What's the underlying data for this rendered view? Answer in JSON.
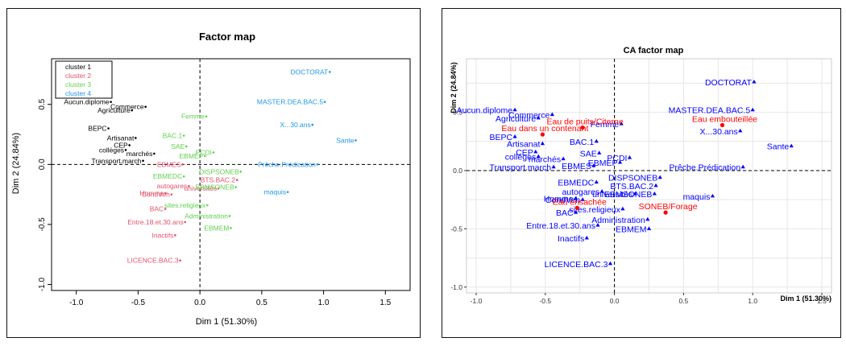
{
  "charts": [
    {
      "type": "scatter",
      "title": "Factor map",
      "xlabel": "Dim 1 (51.30%)",
      "ylabel": "Dim 2 (24.84%)",
      "xlim": [
        -1.2,
        1.7
      ],
      "ylim": [
        -1.05,
        0.88
      ],
      "xticks": [
        -1.0,
        -0.5,
        0.0,
        0.5,
        1.0,
        1.5
      ],
      "yticks": [
        -1.0,
        -0.5,
        0.0,
        0.5
      ],
      "tick_labels_x": [
        "-1.0",
        "-0.5",
        "0.0",
        "0.5",
        "1.0",
        "1.5"
      ],
      "tick_labels_y": [
        "-1.0",
        "-0.5",
        "0.0",
        "0.5"
      ],
      "grid": false,
      "legend_position": "top-left",
      "legend": [
        {
          "name": "cluster 1",
          "color": "#000000"
        },
        {
          "name": "cluster 2",
          "color": "#df536b"
        },
        {
          "name": "cluster 3",
          "color": "#61d04f"
        },
        {
          "name": "cluster 4",
          "color": "#2297e6"
        }
      ],
      "points": [
        {
          "label": "Aucun.diplome",
          "x": -0.72,
          "y": 0.52,
          "cluster": 1
        },
        {
          "label": "Commerce",
          "x": -0.44,
          "y": 0.48,
          "cluster": 1
        },
        {
          "label": "Agriculture",
          "x": -0.55,
          "y": 0.45,
          "cluster": 1
        },
        {
          "label": "BEPC",
          "x": -0.74,
          "y": 0.3,
          "cluster": 1
        },
        {
          "label": "Artisanat",
          "x": -0.52,
          "y": 0.22,
          "cluster": 1
        },
        {
          "label": "CEP",
          "x": -0.57,
          "y": 0.16,
          "cluster": 1
        },
        {
          "label": "collèges",
          "x": -0.6,
          "y": 0.12,
          "cluster": 1
        },
        {
          "label": "marchés",
          "x": -0.37,
          "y": 0.09,
          "cluster": 1
        },
        {
          "label": "Transport.march",
          "x": -0.46,
          "y": 0.03,
          "cluster": 1
        },
        {
          "label": "EBMES",
          "x": -0.14,
          "y": 0.0,
          "cluster": 2
        },
        {
          "label": "autogares",
          "x": -0.09,
          "y": -0.18,
          "cluster": 2
        },
        {
          "label": "Homme",
          "x": -0.28,
          "y": -0.24,
          "cluster": 2
        },
        {
          "label": "CondVeh",
          "x": -0.23,
          "y": -0.25,
          "cluster": 2
        },
        {
          "label": "universités",
          "x": 0.15,
          "y": -0.2,
          "cluster": 2
        },
        {
          "label": "BTS.BAC.2",
          "x": 0.3,
          "y": -0.13,
          "cluster": 2
        },
        {
          "label": "BAC",
          "x": -0.28,
          "y": -0.37,
          "cluster": 2
        },
        {
          "label": "Entre.18.et.30.ans",
          "x": -0.12,
          "y": -0.48,
          "cluster": 2
        },
        {
          "label": "Inactifs",
          "x": -0.2,
          "y": -0.59,
          "cluster": 2
        },
        {
          "label": "LICENCE.BAC.3",
          "x": -0.16,
          "y": -0.8,
          "cluster": 2
        },
        {
          "label": "Femme",
          "x": 0.05,
          "y": 0.4,
          "cluster": 3
        },
        {
          "label": "BAC.1",
          "x": -0.13,
          "y": 0.24,
          "cluster": 3
        },
        {
          "label": "SAE",
          "x": -0.11,
          "y": 0.15,
          "cluster": 3
        },
        {
          "label": "PCDI",
          "x": 0.11,
          "y": 0.1,
          "cluster": 3
        },
        {
          "label": "EBMEP",
          "x": 0.04,
          "y": 0.07,
          "cluster": 3
        },
        {
          "label": "DISPSONEB",
          "x": 0.33,
          "y": -0.06,
          "cluster": 3
        },
        {
          "label": "EBMEDC",
          "x": -0.13,
          "y": -0.1,
          "cluster": 3
        },
        {
          "label": "EBMSONEB",
          "x": 0.29,
          "y": -0.19,
          "cluster": 3
        },
        {
          "label": "sites.religieux",
          "x": 0.06,
          "y": -0.34,
          "cluster": 3
        },
        {
          "label": "Administration",
          "x": 0.24,
          "y": -0.43,
          "cluster": 3
        },
        {
          "label": "EBMEM",
          "x": 0.25,
          "y": -0.53,
          "cluster": 3
        },
        {
          "label": "DOCTORAT",
          "x": 1.05,
          "y": 0.77,
          "cluster": 4
        },
        {
          "label": "MASTER.DEA.BAC.5",
          "x": 1.01,
          "y": 0.52,
          "cluster": 4
        },
        {
          "label": "X...30.ans",
          "x": 0.91,
          "y": 0.33,
          "cluster": 4
        },
        {
          "label": "Sante",
          "x": 1.26,
          "y": 0.2,
          "cluster": 4
        },
        {
          "label": "Prêche.Prédication",
          "x": 0.95,
          "y": 0.0,
          "cluster": 4
        },
        {
          "label": "maquis",
          "x": 0.71,
          "y": -0.23,
          "cluster": 4
        }
      ]
    },
    {
      "type": "scatter",
      "title": "CA factor map",
      "xlabel": "Dim 1 (51.30%)",
      "ylabel": "Dim 2 (24.84%)",
      "xlim": [
        -1.07,
        1.57
      ],
      "ylim": [
        -1.05,
        0.96
      ],
      "xticks": [
        -1.0,
        -0.5,
        0.0,
        0.5,
        1.0,
        1.5
      ],
      "yticks": [
        -1.0,
        -0.5,
        0.0,
        0.5
      ],
      "tick_labels_x": [
        "-1.0",
        "-0.5",
        "0.0",
        "0.5",
        "1.0",
        "1.5"
      ],
      "tick_labels_y": [
        "-1.0",
        "-0.5",
        "0.0",
        "0.5"
      ],
      "grid": true,
      "row_color": "#0000ff",
      "col_color": "#ff0000",
      "row_points": [
        {
          "label": "DOCTORAT",
          "x": 1.01,
          "y": 0.76
        },
        {
          "label": "MASTER.DEA.BAC.5",
          "x": 1.0,
          "y": 0.52
        },
        {
          "label": "Aucun.diplome",
          "x": -0.72,
          "y": 0.52
        },
        {
          "label": "Commerce",
          "x": -0.45,
          "y": 0.48
        },
        {
          "label": "Agriculture",
          "x": -0.55,
          "y": 0.45
        },
        {
          "label": "Femme",
          "x": 0.05,
          "y": 0.4
        },
        {
          "label": "X...30.ans",
          "x": 0.91,
          "y": 0.34
        },
        {
          "label": "BAC.1",
          "x": -0.13,
          "y": 0.25
        },
        {
          "label": "BEPC",
          "x": -0.72,
          "y": 0.29
        },
        {
          "label": "Artisanat",
          "x": -0.52,
          "y": 0.23
        },
        {
          "label": "SAE",
          "x": -0.11,
          "y": 0.15
        },
        {
          "label": "CEP",
          "x": -0.57,
          "y": 0.16
        },
        {
          "label": "Sante",
          "x": 1.28,
          "y": 0.21
        },
        {
          "label": "marchés",
          "x": -0.37,
          "y": 0.1
        },
        {
          "label": "PCDI",
          "x": 0.11,
          "y": 0.11
        },
        {
          "label": "collèges",
          "x": -0.55,
          "y": 0.12
        },
        {
          "label": "Prêche.Prédication",
          "x": 0.93,
          "y": 0.03
        },
        {
          "label": "EBMES",
          "x": -0.15,
          "y": 0.04
        },
        {
          "label": "EBMEP",
          "x": 0.04,
          "y": 0.07
        },
        {
          "label": "Transport.march",
          "x": -0.44,
          "y": 0.03
        },
        {
          "label": "EBMEDC",
          "x": -0.13,
          "y": -0.1
        },
        {
          "label": "DISPSONEB",
          "x": 0.33,
          "y": -0.06
        },
        {
          "label": "autogares",
          "x": -0.09,
          "y": -0.18
        },
        {
          "label": "BTS.BAC.2",
          "x": 0.3,
          "y": -0.13
        },
        {
          "label": "universités",
          "x": 0.15,
          "y": -0.2
        },
        {
          "label": "CondVeh",
          "x": -0.23,
          "y": -0.25
        },
        {
          "label": "maquis",
          "x": 0.71,
          "y": -0.22
        },
        {
          "label": "Homme",
          "x": -0.28,
          "y": -0.24
        },
        {
          "label": "EBMSONEB",
          "x": 0.29,
          "y": -0.2
        },
        {
          "label": "sites.religieux",
          "x": 0.06,
          "y": -0.33
        },
        {
          "label": "BAC",
          "x": -0.28,
          "y": -0.36
        },
        {
          "label": "Administration",
          "x": 0.24,
          "y": -0.42
        },
        {
          "label": "Entre.18.et.30.ans",
          "x": -0.12,
          "y": -0.47
        },
        {
          "label": "EBMEM",
          "x": 0.25,
          "y": -0.5
        },
        {
          "label": "Inactifs",
          "x": -0.2,
          "y": -0.58
        },
        {
          "label": "LICENCE.BAC.3",
          "x": -0.03,
          "y": -0.8
        }
      ],
      "col_points": [
        {
          "label": "Eau embouteillée",
          "x": 0.78,
          "y": 0.39
        },
        {
          "label": "Eau de puits/Citerne",
          "x": -0.23,
          "y": 0.37
        },
        {
          "label": "Eau dans un contenant",
          "x": -0.52,
          "y": 0.31
        },
        {
          "label": "Eau ensachée",
          "x": -0.27,
          "y": -0.32
        },
        {
          "label": "SONEB/Forage",
          "x": 0.37,
          "y": -0.36
        }
      ]
    }
  ]
}
